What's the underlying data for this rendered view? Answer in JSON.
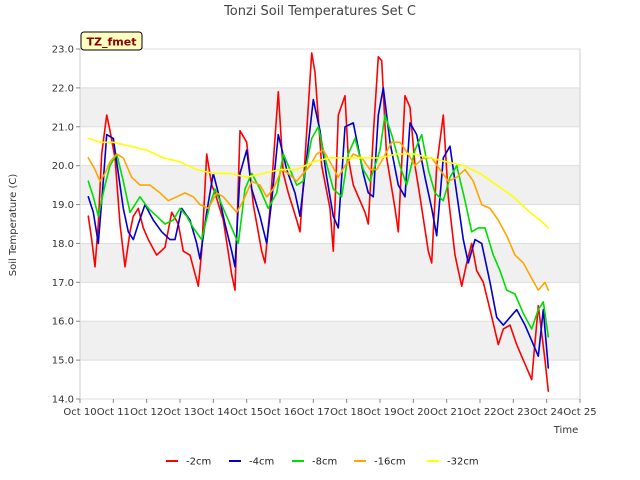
{
  "chart_data": {
    "type": "line",
    "title": "Tonzi Soil Temperatures Set C",
    "xlabel": "Time",
    "ylabel": "Soil Temperature (C)",
    "badge": "TZ_fmet",
    "xlim": [
      10,
      25
    ],
    "ylim": [
      14.0,
      23.0
    ],
    "x_ticks": [
      {
        "value": 10,
        "label": "Oct 10"
      },
      {
        "value": 11,
        "label": "Oct 11"
      },
      {
        "value": 12,
        "label": "Oct 12"
      },
      {
        "value": 13,
        "label": "Oct 13"
      },
      {
        "value": 14,
        "label": "Oct 14"
      },
      {
        "value": 15,
        "label": "Oct 15"
      },
      {
        "value": 16,
        "label": "Oct 16"
      },
      {
        "value": 17,
        "label": "Oct 17"
      },
      {
        "value": 18,
        "label": "Oct 18"
      },
      {
        "value": 19,
        "label": "Oct 19"
      },
      {
        "value": 20,
        "label": "Oct 20"
      },
      {
        "value": 21,
        "label": "Oct 21"
      },
      {
        "value": 22,
        "label": "Oct 22"
      },
      {
        "value": 23,
        "label": "Oct 23"
      },
      {
        "value": 24,
        "label": "Oct 24"
      },
      {
        "value": 25,
        "label": "Oct 25"
      }
    ],
    "y_ticks": [
      {
        "value": 14.0,
        "label": "14.0"
      },
      {
        "value": 15.0,
        "label": "15.0"
      },
      {
        "value": 16.0,
        "label": "16.0"
      },
      {
        "value": 17.0,
        "label": "17.0"
      },
      {
        "value": 18.0,
        "label": "18.0"
      },
      {
        "value": 19.0,
        "label": "19.0"
      },
      {
        "value": 20.0,
        "label": "20.0"
      },
      {
        "value": 21.0,
        "label": "21.0"
      },
      {
        "value": 22.0,
        "label": "22.0"
      },
      {
        "value": 23.0,
        "label": "23.0"
      }
    ],
    "grid": true,
    "legend_position": "bottom",
    "series": [
      {
        "name": "-2cm",
        "color": "#ff0000",
        "x": [
          10.25,
          10.35,
          10.45,
          10.55,
          10.65,
          10.8,
          10.9,
          11.05,
          11.2,
          11.35,
          11.5,
          11.6,
          11.75,
          11.9,
          12.05,
          12.3,
          12.55,
          12.75,
          12.95,
          13.1,
          13.3,
          13.55,
          13.65,
          13.8,
          13.95,
          14.05,
          14.3,
          14.55,
          14.65,
          14.8,
          15.0,
          15.2,
          15.45,
          15.55,
          15.7,
          15.95,
          16.1,
          16.25,
          16.5,
          16.6,
          16.7,
          16.95,
          17.05,
          17.25,
          17.5,
          17.6,
          17.75,
          17.95,
          18.05,
          18.2,
          18.55,
          18.65,
          18.8,
          18.95,
          19.05,
          19.2,
          19.45,
          19.55,
          19.75,
          19.9,
          20.05,
          20.2,
          20.45,
          20.55,
          20.7,
          20.9,
          21.05,
          21.25,
          21.45,
          21.6,
          21.75,
          21.9,
          22.1,
          22.3,
          22.55,
          22.7,
          22.9,
          23.1,
          23.3,
          23.55,
          23.75,
          23.95,
          24.05
        ],
        "y": [
          18.7,
          18.1,
          17.4,
          18.5,
          20.3,
          21.3,
          20.9,
          20.2,
          18.5,
          17.4,
          18.3,
          18.7,
          18.9,
          18.4,
          18.1,
          17.7,
          17.9,
          18.8,
          18.5,
          17.8,
          17.7,
          16.9,
          17.8,
          20.3,
          19.5,
          19.3,
          18.6,
          17.2,
          16.8,
          20.9,
          20.6,
          19.0,
          17.8,
          17.5,
          18.9,
          21.9,
          19.8,
          19.3,
          18.6,
          18.3,
          19.5,
          22.9,
          22.4,
          20.0,
          18.9,
          17.8,
          21.3,
          21.8,
          20.2,
          19.5,
          18.8,
          18.5,
          20.8,
          22.8,
          22.7,
          20.2,
          18.9,
          18.3,
          21.8,
          21.5,
          20.0,
          19.2,
          17.8,
          17.5,
          20.0,
          21.3,
          19.2,
          17.7,
          16.9,
          17.5,
          18.0,
          17.3,
          17.0,
          16.3,
          15.4,
          15.8,
          15.9,
          15.4,
          15.0,
          14.5,
          16.4,
          15.0,
          14.2
        ]
      },
      {
        "name": "-4cm",
        "color": "#0000cc",
        "x": [
          10.25,
          10.4,
          10.55,
          10.7,
          10.8,
          11.0,
          11.15,
          11.3,
          11.45,
          11.6,
          11.75,
          11.95,
          12.2,
          12.45,
          12.7,
          12.85,
          13.05,
          13.3,
          13.5,
          13.6,
          13.8,
          14.0,
          14.15,
          14.35,
          14.55,
          14.65,
          14.8,
          15.0,
          15.15,
          15.4,
          15.6,
          15.75,
          15.95,
          16.2,
          16.45,
          16.6,
          16.75,
          17.0,
          17.2,
          17.4,
          17.6,
          17.75,
          17.95,
          18.2,
          18.5,
          18.65,
          18.8,
          18.95,
          19.1,
          19.3,
          19.55,
          19.75,
          19.9,
          20.1,
          20.35,
          20.55,
          20.7,
          20.9,
          21.1,
          21.35,
          21.5,
          21.65,
          21.85,
          22.05,
          22.3,
          22.5,
          22.7,
          22.9,
          23.1,
          23.35,
          23.55,
          23.75,
          23.9,
          24.05
        ],
        "y": [
          19.2,
          18.8,
          18.0,
          19.6,
          20.8,
          20.7,
          19.8,
          18.9,
          18.3,
          18.1,
          18.5,
          19.0,
          18.6,
          18.3,
          18.1,
          18.1,
          18.9,
          18.6,
          18.0,
          17.6,
          18.8,
          19.8,
          19.3,
          18.5,
          17.8,
          17.4,
          19.8,
          20.4,
          19.4,
          18.7,
          18.0,
          19.1,
          20.8,
          19.9,
          19.3,
          18.7,
          19.8,
          21.7,
          20.9,
          19.7,
          18.7,
          18.4,
          21.0,
          21.1,
          19.8,
          19.3,
          19.2,
          21.3,
          22.0,
          20.6,
          19.5,
          19.2,
          21.1,
          20.8,
          19.7,
          18.9,
          18.2,
          20.2,
          20.5,
          19.0,
          18.1,
          17.5,
          18.1,
          18.0,
          17.0,
          16.1,
          15.9,
          16.1,
          16.3,
          15.9,
          15.5,
          15.1,
          16.3,
          14.8
        ]
      },
      {
        "name": "-8cm",
        "color": "#00dd00",
        "x": [
          10.25,
          10.4,
          10.55,
          10.75,
          10.9,
          11.1,
          11.3,
          11.5,
          11.8,
          12.05,
          12.3,
          12.55,
          12.8,
          13.0,
          13.2,
          13.4,
          13.65,
          13.9,
          14.05,
          14.3,
          14.55,
          14.75,
          14.95,
          15.15,
          15.4,
          15.65,
          15.9,
          16.1,
          16.3,
          16.5,
          16.7,
          16.95,
          17.15,
          17.35,
          17.6,
          17.85,
          18.05,
          18.25,
          18.5,
          18.7,
          19.0,
          19.15,
          19.35,
          19.6,
          19.8,
          20.05,
          20.25,
          20.45,
          20.65,
          20.9,
          21.1,
          21.3,
          21.55,
          21.75,
          21.95,
          22.15,
          22.4,
          22.6,
          22.8,
          23.05,
          23.3,
          23.55,
          23.75,
          23.9,
          24.05
        ],
        "y": [
          19.6,
          19.2,
          18.7,
          19.5,
          20.0,
          20.3,
          19.6,
          18.8,
          19.2,
          18.9,
          18.7,
          18.5,
          18.6,
          18.9,
          18.7,
          18.4,
          18.1,
          19.0,
          19.4,
          18.9,
          18.4,
          18.0,
          19.4,
          19.8,
          19.4,
          18.9,
          19.3,
          20.3,
          19.9,
          19.5,
          19.6,
          20.7,
          21.0,
          20.2,
          19.4,
          19.2,
          20.3,
          20.7,
          19.9,
          19.6,
          20.4,
          21.3,
          20.8,
          20.0,
          19.5,
          20.4,
          20.8,
          19.9,
          19.3,
          19.1,
          19.7,
          20.0,
          19.1,
          18.3,
          18.4,
          18.4,
          17.7,
          17.3,
          16.8,
          16.7,
          16.2,
          15.8,
          16.3,
          16.5,
          15.6
        ]
      },
      {
        "name": "-16cm",
        "color": "#ffa500",
        "x": [
          10.25,
          10.45,
          10.6,
          10.75,
          10.9,
          11.1,
          11.3,
          11.55,
          11.8,
          12.1,
          12.4,
          12.65,
          12.9,
          13.15,
          13.4,
          13.6,
          13.85,
          14.1,
          14.3,
          14.5,
          14.7,
          14.9,
          15.15,
          15.4,
          15.6,
          15.8,
          16.05,
          16.25,
          16.5,
          16.7,
          16.9,
          17.1,
          17.3,
          17.5,
          17.75,
          17.95,
          18.2,
          18.45,
          18.7,
          18.9,
          19.1,
          19.35,
          19.6,
          19.85,
          20.05,
          20.3,
          20.55,
          20.8,
          21.05,
          21.3,
          21.55,
          21.8,
          22.05,
          22.3,
          22.55,
          22.8,
          23.05,
          23.3,
          23.55,
          23.75,
          23.95,
          24.05
        ],
        "y": [
          20.2,
          19.9,
          19.6,
          19.8,
          20.1,
          20.3,
          20.2,
          19.7,
          19.5,
          19.5,
          19.3,
          19.1,
          19.2,
          19.3,
          19.2,
          19.0,
          18.9,
          19.3,
          19.2,
          19.0,
          18.8,
          19.1,
          19.6,
          19.5,
          19.2,
          19.4,
          19.9,
          19.8,
          19.6,
          19.8,
          20.0,
          20.3,
          20.4,
          20.1,
          19.7,
          20.0,
          20.3,
          20.2,
          19.9,
          19.9,
          20.2,
          20.6,
          20.6,
          20.3,
          20.0,
          20.2,
          20.2,
          19.9,
          19.6,
          19.7,
          19.9,
          19.6,
          19.0,
          18.9,
          18.6,
          18.2,
          17.7,
          17.5,
          17.1,
          16.8,
          17.0,
          16.8
        ]
      },
      {
        "name": "-32cm",
        "color": "#ffff00",
        "x": [
          10.25,
          10.6,
          11.0,
          11.5,
          12.0,
          12.5,
          13.0,
          13.5,
          14.0,
          14.5,
          15.0,
          15.5,
          16.0,
          16.5,
          17.0,
          17.5,
          18.0,
          18.5,
          19.0,
          19.5,
          20.0,
          20.5,
          21.0,
          21.5,
          22.0,
          22.5,
          23.0,
          23.5,
          23.8,
          24.05
        ],
        "y": [
          20.7,
          20.6,
          20.6,
          20.5,
          20.4,
          20.2,
          20.1,
          19.9,
          19.8,
          19.8,
          19.7,
          19.8,
          19.9,
          19.9,
          20.1,
          20.2,
          20.2,
          20.2,
          20.2,
          20.3,
          20.3,
          20.2,
          20.1,
          20.0,
          19.8,
          19.5,
          19.2,
          18.8,
          18.6,
          18.4
        ]
      }
    ]
  }
}
